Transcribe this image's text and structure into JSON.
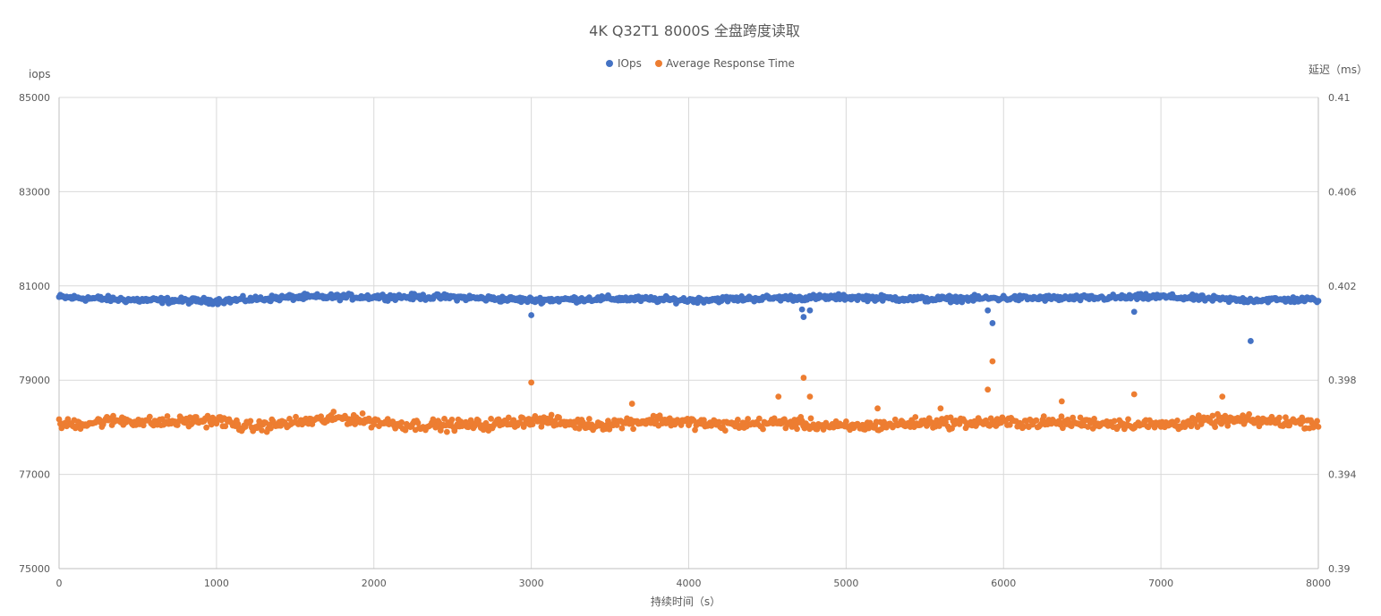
{
  "chart_data": {
    "type": "scatter",
    "title": "4K Q32T1 8000S 全盘跨度读取",
    "xlabel": "持续时间（s）",
    "ylabel_left": "iops",
    "ylabel_right": "延迟（ms）",
    "xlim": [
      0,
      8000
    ],
    "xticks": [
      "0",
      "1000",
      "2000",
      "3000",
      "4000",
      "5000",
      "6000",
      "7000",
      "8000"
    ],
    "ylim_left": [
      75000,
      85000
    ],
    "yticks_left": [
      "75000",
      "77000",
      "79000",
      "81000",
      "83000",
      "85000"
    ],
    "ylim_right": [
      0.39,
      0.41
    ],
    "yticks_right": [
      "0.39",
      "0.394",
      "0.398",
      "0.402",
      "0.406",
      "0.41"
    ],
    "grid": true,
    "legend_position": "top",
    "series": [
      {
        "name": "IOps",
        "axis": "left",
        "color": "#4472C4",
        "baseline": 80720,
        "spread": 90,
        "profile": [
          [
            0,
            80760
          ],
          [
            500,
            80700
          ],
          [
            1000,
            80680
          ],
          [
            1500,
            80760
          ],
          [
            2000,
            80770
          ],
          [
            2500,
            80760
          ],
          [
            3000,
            80700
          ],
          [
            3500,
            80730
          ],
          [
            4000,
            80700
          ],
          [
            4500,
            80740
          ],
          [
            5000,
            80760
          ],
          [
            5500,
            80720
          ],
          [
            6000,
            80740
          ],
          [
            6500,
            80740
          ],
          [
            7000,
            80770
          ],
          [
            7500,
            80700
          ],
          [
            8000,
            80710
          ]
        ],
        "outliers": [
          [
            3000,
            80380
          ],
          [
            4730,
            80340
          ],
          [
            4770,
            80480
          ],
          [
            5930,
            80210
          ],
          [
            6830,
            80450
          ],
          [
            7570,
            79830
          ],
          [
            5900,
            80480
          ],
          [
            4720,
            80500
          ]
        ]
      },
      {
        "name": "Average Response Time",
        "axis": "right",
        "color": "#ED7D31",
        "baseline": 0.3962,
        "spread": 0.00035,
        "profile": [
          [
            0,
            0.3961
          ],
          [
            400,
            0.3963
          ],
          [
            600,
            0.3962
          ],
          [
            1000,
            0.3963
          ],
          [
            1200,
            0.396
          ],
          [
            1800,
            0.3964
          ],
          [
            2200,
            0.3961
          ],
          [
            2700,
            0.3961
          ],
          [
            3000,
            0.3963
          ],
          [
            3400,
            0.3961
          ],
          [
            3800,
            0.3963
          ],
          [
            4200,
            0.3961
          ],
          [
            4600,
            0.3962
          ],
          [
            5000,
            0.396
          ],
          [
            5500,
            0.3962
          ],
          [
            6000,
            0.3962
          ],
          [
            6500,
            0.3962
          ],
          [
            7000,
            0.3961
          ],
          [
            7400,
            0.3963
          ],
          [
            8000,
            0.3962
          ]
        ],
        "outliers": [
          [
            3000,
            0.3979
          ],
          [
            4730,
            0.3981
          ],
          [
            4770,
            0.3973
          ],
          [
            5930,
            0.3988
          ],
          [
            5900,
            0.3976
          ],
          [
            6830,
            0.3974
          ],
          [
            7390,
            0.3973
          ],
          [
            4570,
            0.3973
          ],
          [
            3640,
            0.397
          ],
          [
            6370,
            0.3971
          ],
          [
            5200,
            0.3968
          ],
          [
            5600,
            0.3968
          ]
        ]
      }
    ]
  }
}
